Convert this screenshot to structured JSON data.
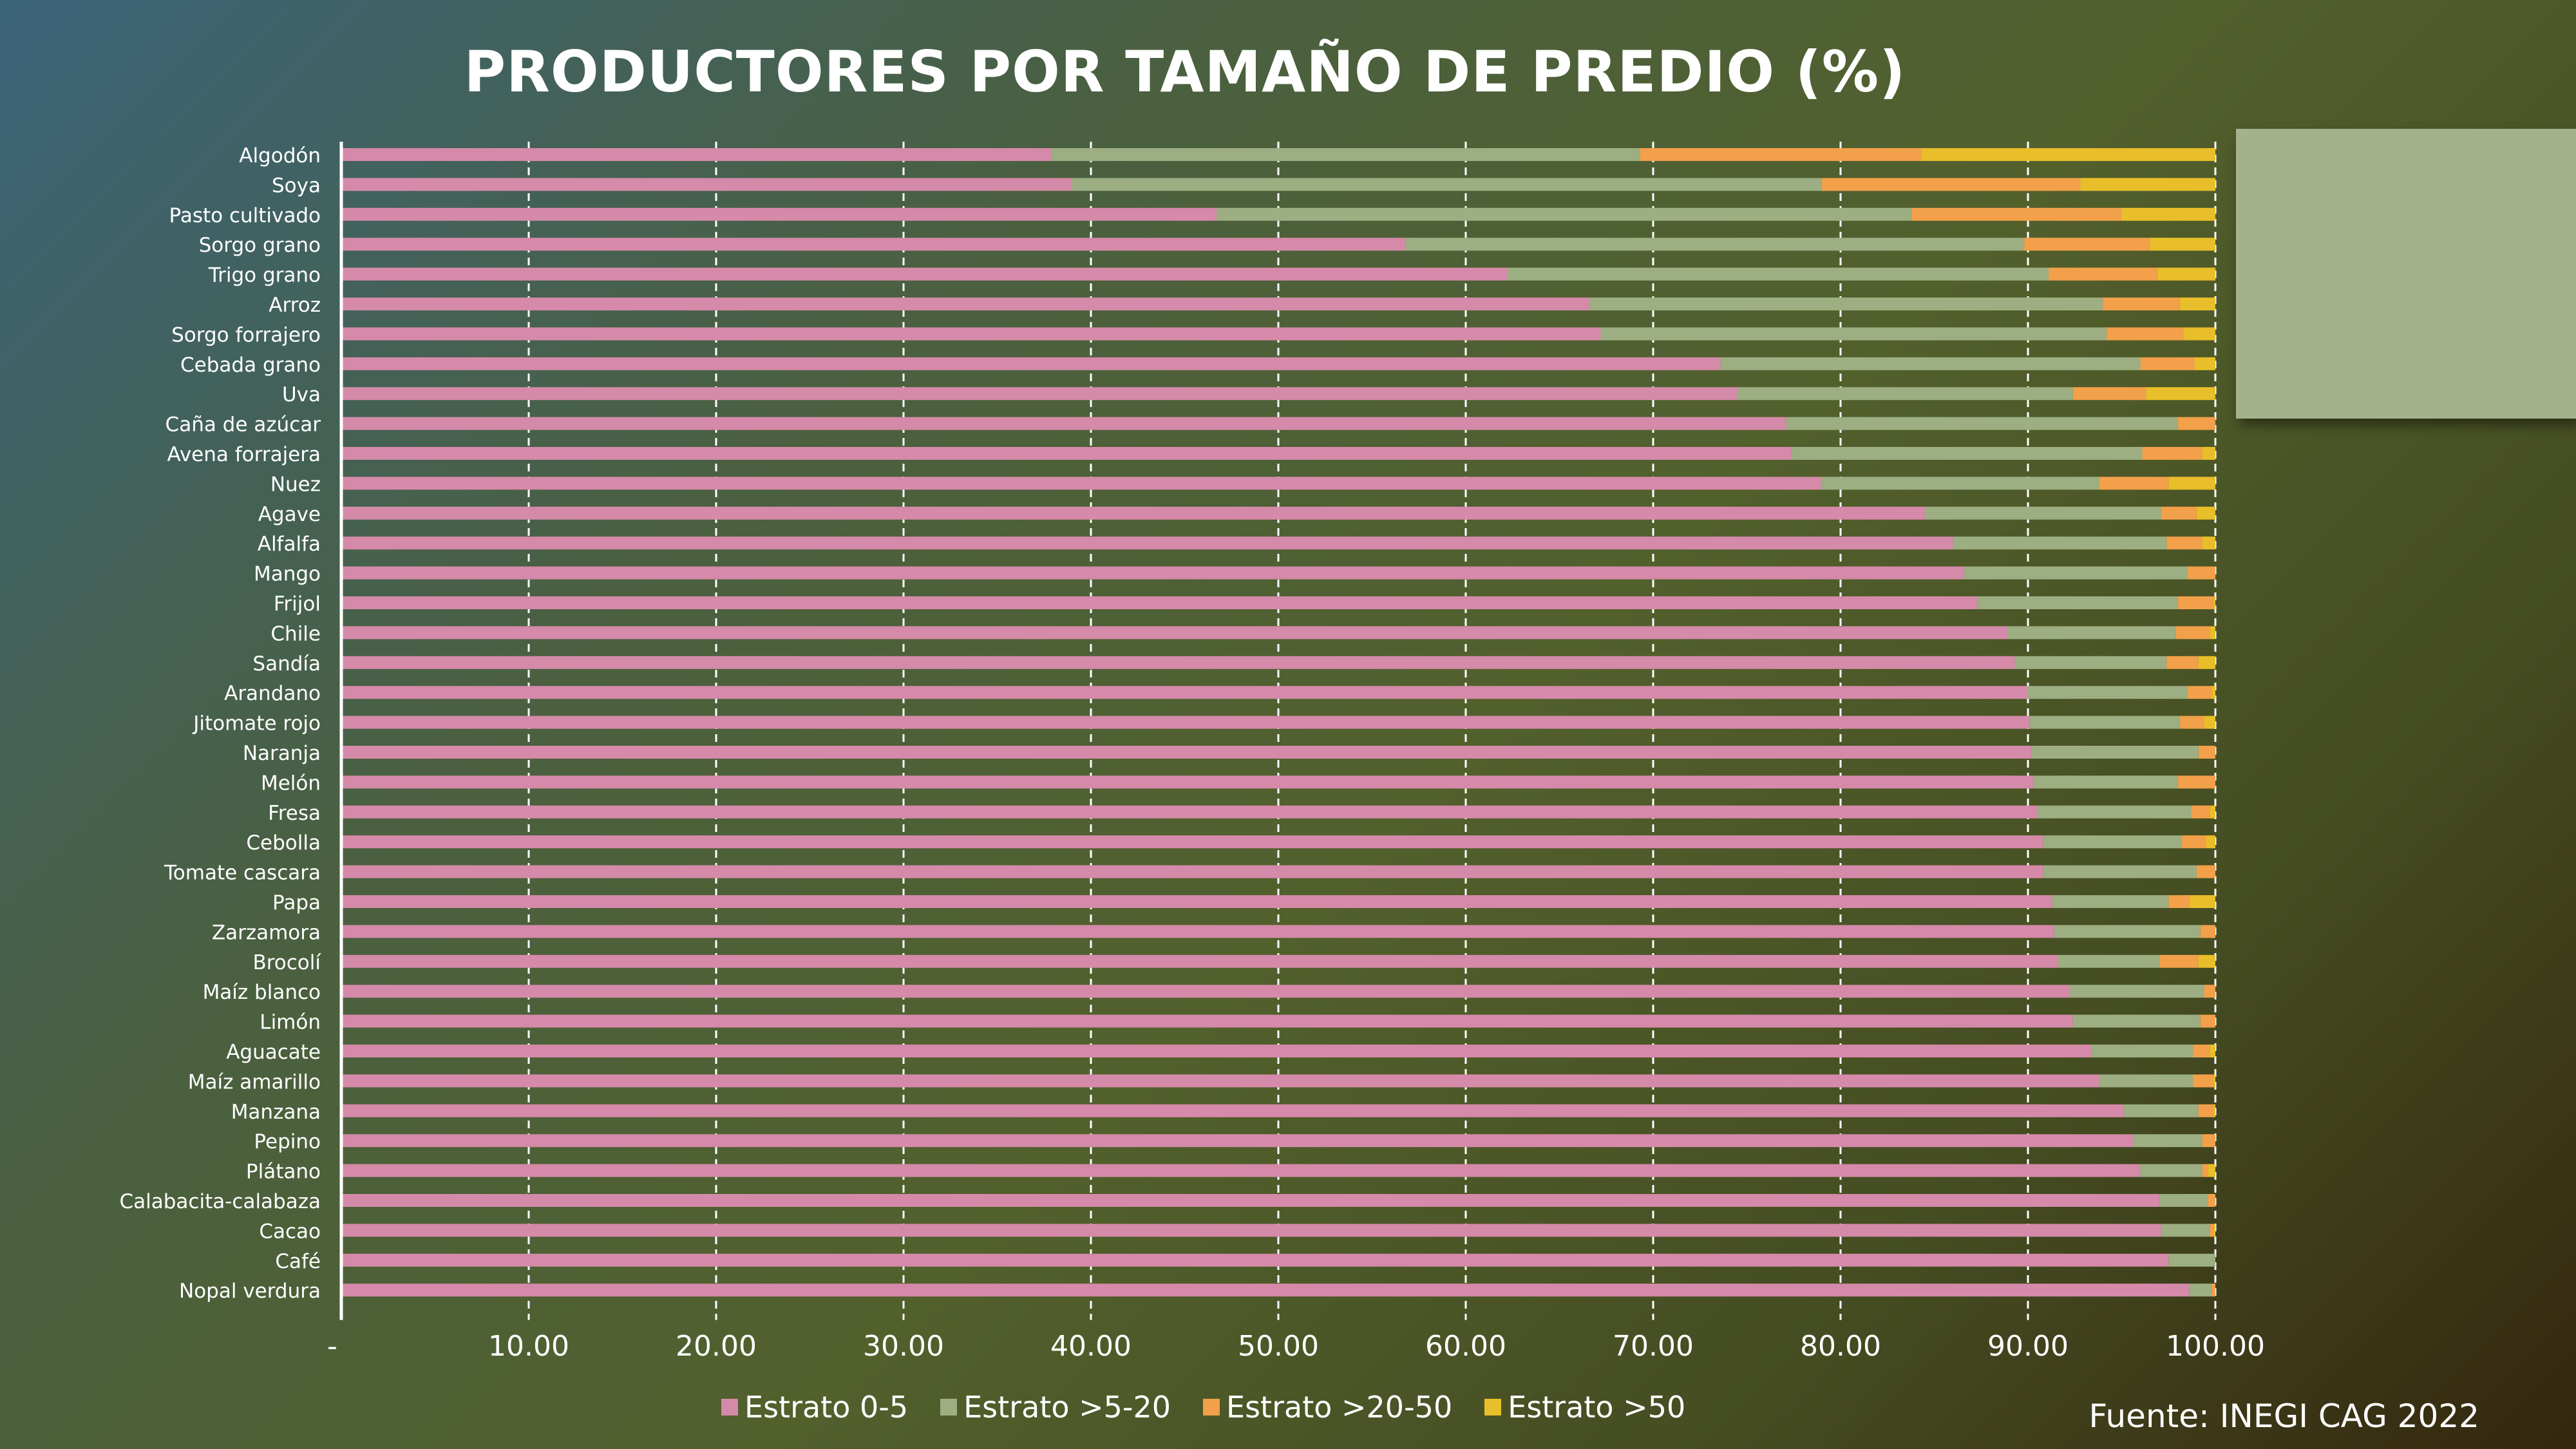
{
  "chart_data": {
    "type": "bar",
    "orientation": "horizontal",
    "stacked": true,
    "title": "PRODUCTORES POR TAMAÑO DE PREDIO (%)",
    "source": "Fuente: INEGI CAG 2022",
    "xlim": [
      0,
      100
    ],
    "x_ticks": [
      "-",
      "10.00",
      "20.00",
      "30.00",
      "40.00",
      "50.00",
      "60.00",
      "70.00",
      "80.00",
      "90.00",
      "100.00"
    ],
    "grid": true,
    "legend_position": "bottom",
    "categories": [
      "Algodón",
      "Soya",
      "Pasto cultivado",
      "Sorgo grano",
      "Trigo grano",
      "Arroz",
      "Sorgo forrajero",
      "Cebada grano",
      "Uva",
      "Caña de azúcar",
      "Avena forrajera",
      "Nuez",
      "Agave",
      "Alfalfa",
      "Mango",
      "Frijol",
      "Chile",
      "Sandía",
      "Arandano",
      "Jitomate rojo",
      "Naranja",
      "Melón",
      "Fresa",
      "Cebolla",
      "Tomate cascara",
      "Papa",
      "Zarzamora",
      "Brocolí",
      "Maíz blanco",
      "Limón",
      "Aguacate",
      "Maíz amarillo",
      "Manzana",
      "Pepino",
      "Plátano",
      "Calabacita-calabaza",
      "Cacao",
      "Café",
      "Nopal verdura"
    ],
    "series": [
      {
        "name": "Estrato 0-5",
        "color": "#d48aa8",
        "values": [
          37.9,
          39.0,
          46.7,
          56.8,
          62.2,
          66.6,
          67.2,
          73.6,
          74.5,
          77.1,
          77.4,
          79.0,
          84.5,
          86.0,
          86.6,
          87.3,
          88.9,
          89.3,
          90.0,
          90.1,
          90.2,
          90.3,
          90.5,
          90.8,
          90.8,
          91.3,
          91.4,
          91.6,
          92.2,
          92.4,
          93.4,
          93.8,
          95.1,
          95.6,
          96.0,
          97.0,
          97.1,
          97.5,
          98.6
        ]
      },
      {
        "name": "Estrato >5-20",
        "color": "#9cae82",
        "values": [
          31.4,
          40.0,
          37.1,
          33.0,
          28.9,
          27.4,
          27.0,
          22.4,
          17.9,
          20.9,
          18.7,
          14.8,
          12.6,
          11.4,
          11.9,
          10.7,
          9.0,
          8.1,
          8.5,
          8.0,
          8.9,
          7.7,
          8.2,
          7.4,
          8.2,
          6.2,
          7.8,
          5.4,
          7.2,
          6.8,
          5.4,
          5.0,
          4.0,
          3.7,
          3.3,
          2.6,
          2.6,
          2.5,
          1.2
        ]
      },
      {
        "name": "Estrato >20-50",
        "color": "#f2a04a",
        "values": [
          15.0,
          13.8,
          11.2,
          6.7,
          5.8,
          4.1,
          4.1,
          2.9,
          3.9,
          2.0,
          3.2,
          3.7,
          1.9,
          1.9,
          1.5,
          1.9,
          1.8,
          1.7,
          1.3,
          1.3,
          0.9,
          2.0,
          1.0,
          1.3,
          1.0,
          1.1,
          0.8,
          2.1,
          0.6,
          0.8,
          0.9,
          1.1,
          0.8,
          0.7,
          0.3,
          0.4,
          0.2,
          0.0,
          0.2
        ]
      },
      {
        "name": "Estrato >50",
        "color": "#e8be2a",
        "values": [
          15.7,
          7.2,
          5.0,
          3.5,
          3.1,
          1.9,
          1.7,
          1.1,
          3.7,
          0.0,
          0.7,
          2.5,
          1.0,
          0.7,
          0.0,
          0.1,
          0.3,
          0.9,
          0.2,
          0.6,
          0.0,
          0.0,
          0.3,
          0.5,
          0.0,
          1.4,
          0.0,
          0.9,
          0.0,
          0.0,
          0.3,
          0.1,
          0.1,
          0.0,
          0.4,
          0.0,
          0.1,
          0.0,
          0.0
        ]
      }
    ]
  }
}
